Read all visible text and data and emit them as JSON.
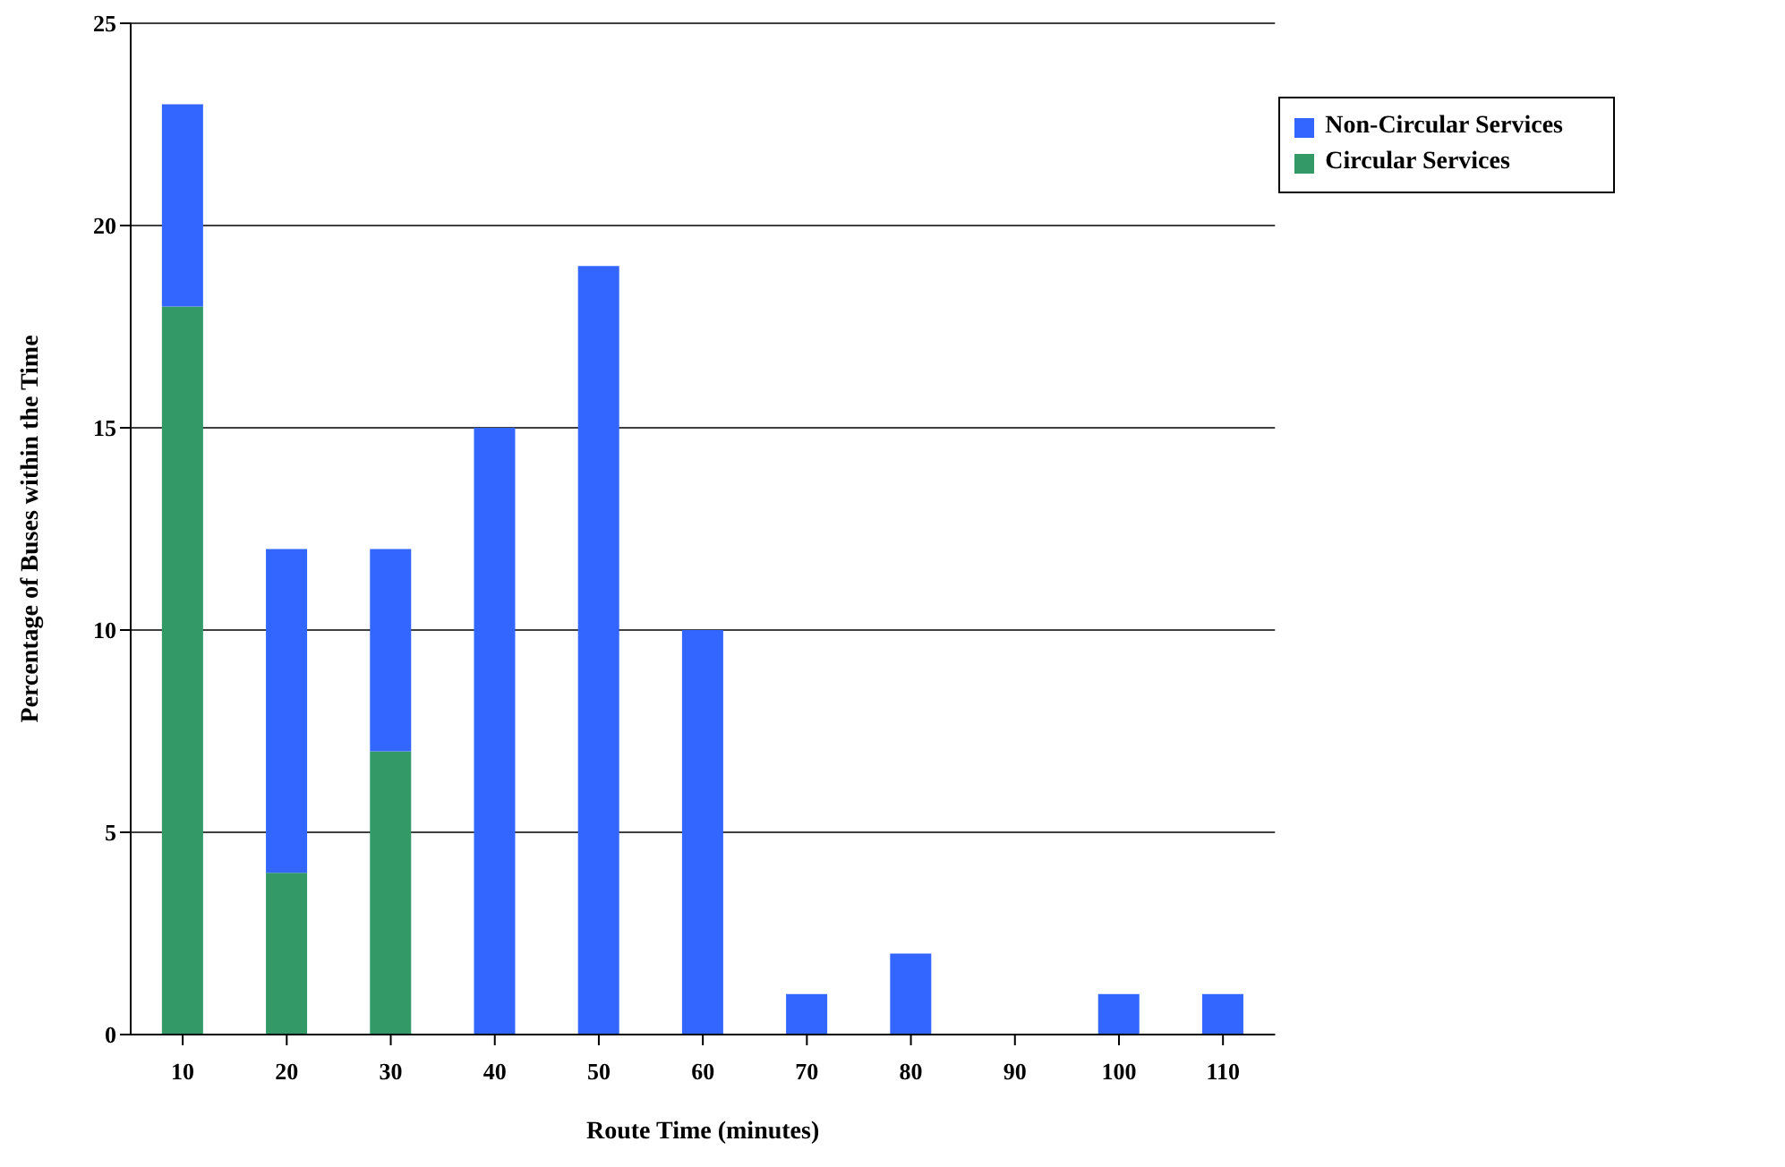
{
  "chart_data": {
    "type": "bar",
    "stacked": true,
    "xlabel": "Route Time (minutes)",
    "ylabel": "Percentage of Buses within the Time",
    "categories": [
      "10",
      "20",
      "30",
      "40",
      "50",
      "60",
      "70",
      "80",
      "90",
      "100",
      "110"
    ],
    "series": [
      {
        "name": "Circular Services",
        "color": "#339966",
        "values": [
          18,
          4,
          7,
          0,
          0,
          0,
          0,
          0,
          0,
          0,
          0
        ]
      },
      {
        "name": "Non-Circular Services",
        "color": "#3366ff",
        "values": [
          5,
          8,
          5,
          15,
          19,
          10,
          1,
          2,
          0,
          1,
          1
        ]
      }
    ],
    "ylim": [
      0,
      25
    ],
    "yticks": [
      0,
      5,
      10,
      15,
      20,
      25
    ],
    "grid": "y",
    "legend": "top right"
  }
}
